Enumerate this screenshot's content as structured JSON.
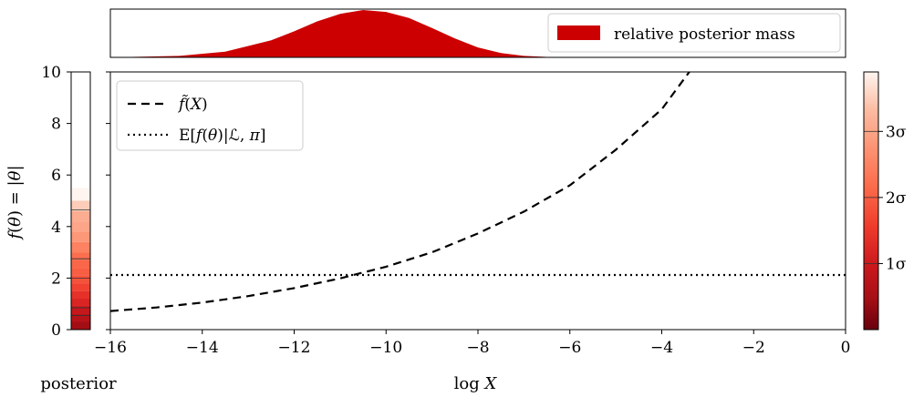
{
  "chart_data": [
    {
      "panel": "top",
      "type": "area",
      "series": [
        {
          "name": "relative posterior mass",
          "color": "#cc0000",
          "x": [
            -16,
            -14.5,
            -13.5,
            -12.5,
            -12,
            -11.5,
            -11,
            -10.5,
            -10,
            -9.5,
            -9,
            -8.5,
            -8,
            -7.5,
            -7,
            -6.5,
            -6,
            0
          ],
          "values": [
            0.0,
            0.03,
            0.12,
            0.36,
            0.55,
            0.76,
            0.92,
            1.0,
            0.96,
            0.83,
            0.62,
            0.4,
            0.21,
            0.09,
            0.03,
            0.01,
            0.0,
            0.0
          ]
        }
      ],
      "legend_position": "right",
      "xlim": [
        -16,
        0
      ]
    },
    {
      "panel": "main",
      "type": "line",
      "series": [
        {
          "name": "f̃(X)",
          "style": "dashed",
          "color": "#000000",
          "x": [
            -16,
            -15,
            -14,
            -13,
            -12,
            -11,
            -10,
            -9,
            -8,
            -7,
            -6,
            -5,
            -4,
            -3.4
          ],
          "values": [
            0.72,
            0.86,
            1.05,
            1.3,
            1.61,
            1.99,
            2.44,
            3.0,
            3.73,
            4.58,
            5.6,
            6.98,
            8.55,
            10.0
          ]
        },
        {
          "name": "E[f(θ)|ℒ,π]",
          "style": "dotted",
          "color": "#000000",
          "x": [
            -16,
            0
          ],
          "values": [
            2.12,
            2.12
          ]
        }
      ],
      "xlabel": "log X",
      "ylabel": "f(θ) = |θ|",
      "xlim": [
        -16,
        0
      ],
      "ylim": [
        0,
        10
      ],
      "xticks": [
        "−16",
        "−14",
        "−12",
        "−10",
        "−8",
        "−6",
        "−4",
        "−2",
        "0"
      ],
      "yticks": [
        "0",
        "2",
        "4",
        "6",
        "8",
        "10"
      ],
      "grid": false,
      "legend_position": "top-left"
    },
    {
      "panel": "left",
      "type": "heatmap",
      "label": "posterior",
      "colormap": "Reds_r",
      "y": [
        0.3,
        0.6,
        0.9,
        1.2,
        1.5,
        1.8,
        2.1,
        2.4,
        2.7,
        3.0,
        3.4,
        3.8,
        4.2,
        4.6,
        5.0,
        5.5
      ],
      "values": [
        0.45,
        0.7,
        0.9,
        1.2,
        1.4,
        1.65,
        1.85,
        2.0,
        2.1,
        2.2,
        2.5,
        2.8,
        3.0,
        3.1,
        3.5,
        3.9
      ],
      "contour_levels": [
        0.55,
        0.85,
        2.0,
        2.75,
        4.65
      ]
    },
    {
      "panel": "colorbar",
      "type": "heatmap",
      "colormap": "Reds_r",
      "range": [
        0,
        3.9
      ],
      "ticks": [
        "1σ",
        "2σ",
        "3σ"
      ],
      "tick_values": [
        1,
        2,
        3
      ]
    }
  ]
}
